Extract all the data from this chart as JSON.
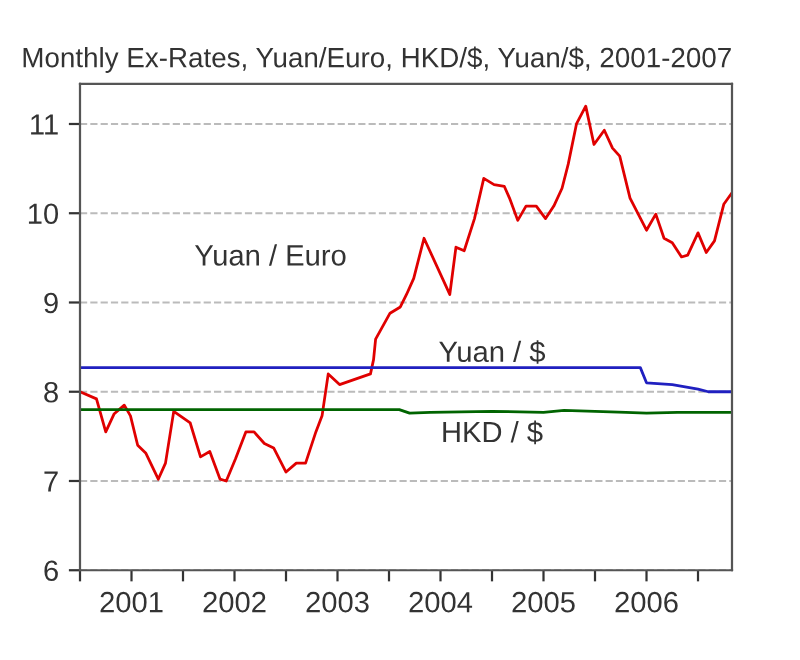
{
  "chart_data": {
    "type": "line",
    "title": "Monthly Ex-Rates, Yuan/Euro, HKD/$, Yuan/$, 2001-2007",
    "xlim": [
      2001.0,
      2007.33
    ],
    "ylim": [
      6,
      11.45
    ],
    "yticks": [
      6,
      7,
      8,
      9,
      10,
      11
    ],
    "xticks": [
      {
        "value": 2001.0,
        "label": null
      },
      {
        "value": 2001.5,
        "label": "2001"
      },
      {
        "value": 2002.0,
        "label": null
      },
      {
        "value": 2002.5,
        "label": "2002"
      },
      {
        "value": 2003.0,
        "label": null
      },
      {
        "value": 2003.5,
        "label": "2003"
      },
      {
        "value": 2004.0,
        "label": null
      },
      {
        "value": 2004.5,
        "label": "2004"
      },
      {
        "value": 2005.0,
        "label": null
      },
      {
        "value": 2005.5,
        "label": "2005"
      },
      {
        "value": 2006.0,
        "label": null
      },
      {
        "value": 2006.5,
        "label": "2006"
      },
      {
        "value": 2007.0,
        "label": null
      }
    ],
    "grid": "y",
    "legend": false,
    "marker": "none",
    "line_style": "solid",
    "series": [
      {
        "name": "Yuan / Euro",
        "color": "#e00000",
        "x": [
          2001.0,
          2001.16,
          2001.25,
          2001.33,
          2001.43,
          2001.49,
          2001.56,
          2001.64,
          2001.76,
          2001.83,
          2001.91,
          2002.07,
          2002.17,
          2002.26,
          2002.36,
          2002.42,
          2002.51,
          2002.61,
          2002.69,
          2002.79,
          2002.88,
          2003.0,
          2003.1,
          2003.19,
          2003.29,
          2003.35,
          2003.41,
          2003.52,
          2003.82,
          2003.85,
          2003.87,
          2004.01,
          2004.11,
          2004.17,
          2004.24,
          2004.34,
          2004.59,
          2004.65,
          2004.73,
          2004.83,
          2004.92,
          2005.02,
          2005.12,
          2005.17,
          2005.25,
          2005.33,
          2005.43,
          2005.52,
          2005.6,
          2005.68,
          2005.74,
          2005.82,
          2005.91,
          2005.99,
          2006.09,
          2006.17,
          2006.24,
          2006.34,
          2006.42,
          2006.5,
          2006.59,
          2006.67,
          2006.75,
          2006.84,
          2006.9,
          2007.0,
          2007.08,
          2007.16,
          2007.25,
          2007.33
        ],
        "values": [
          8.0,
          7.92,
          7.55,
          7.75,
          7.85,
          7.73,
          7.4,
          7.31,
          7.02,
          7.2,
          7.78,
          7.65,
          7.27,
          7.33,
          7.02,
          7.0,
          7.25,
          7.55,
          7.55,
          7.42,
          7.37,
          7.1,
          7.2,
          7.2,
          7.55,
          7.73,
          8.2,
          8.08,
          8.2,
          8.36,
          8.59,
          8.88,
          8.95,
          9.09,
          9.27,
          9.72,
          9.09,
          9.62,
          9.58,
          9.94,
          10.39,
          10.32,
          10.3,
          10.17,
          9.92,
          10.08,
          10.08,
          9.94,
          10.08,
          10.28,
          10.55,
          11.0,
          11.2,
          10.77,
          10.93,
          10.73,
          10.64,
          10.17,
          9.99,
          9.81,
          9.99,
          9.72,
          9.67,
          9.51,
          9.53,
          9.78,
          9.56,
          9.69,
          10.1,
          10.23
        ]
      },
      {
        "name": "Yuan / $",
        "color": "#2020c0",
        "x": [
          2001.0,
          2006.44,
          2006.5,
          2006.75,
          2007.0,
          2007.1,
          2007.33
        ],
        "values": [
          8.27,
          8.27,
          8.1,
          8.08,
          8.03,
          8.0,
          8.0
        ]
      },
      {
        "name": "HKD / $",
        "color": "#006400",
        "x": [
          2001.0,
          2004.1,
          2004.2,
          2004.4,
          2005.0,
          2005.5,
          2005.7,
          2006.3,
          2006.5,
          2006.8,
          2007.33
        ],
        "values": [
          7.8,
          7.8,
          7.76,
          7.77,
          7.78,
          7.77,
          7.79,
          7.77,
          7.76,
          7.77,
          7.77
        ]
      }
    ]
  }
}
